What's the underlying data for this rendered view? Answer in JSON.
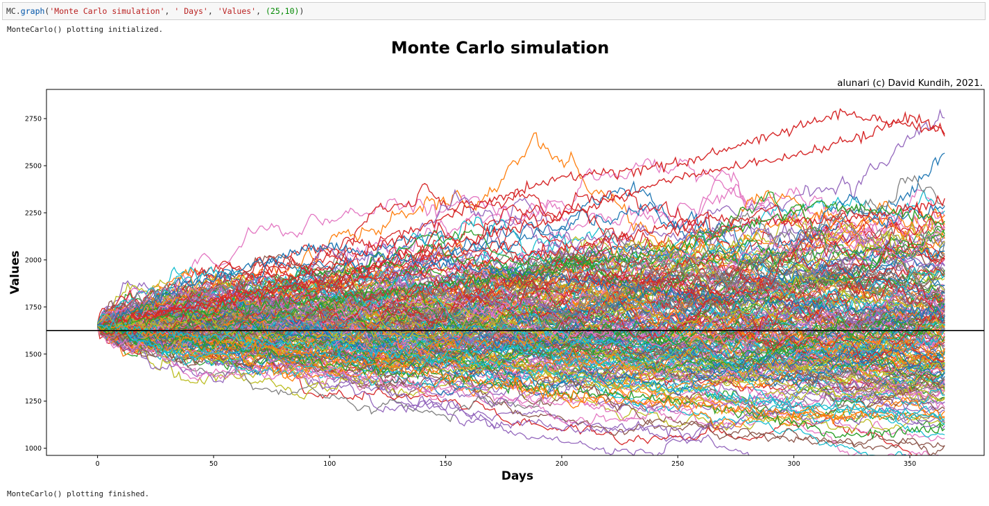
{
  "code_cell": {
    "object": "MC",
    "method": "graph",
    "args": [
      {
        "kind": "str",
        "text": "'Monte Carlo simulation'"
      },
      {
        "kind": "str",
        "text": "' Days'"
      },
      {
        "kind": "str",
        "text": "'Values'"
      },
      {
        "kind": "num",
        "text": "(25,10)"
      }
    ]
  },
  "output": {
    "init_message": "MonteCarlo() plotting initialized.",
    "finish_message": "MonteCarlo() plotting finished."
  },
  "chart_data": {
    "type": "line",
    "title": "Monte Carlo simulation",
    "credit": "alunari (c) David Kundih, 2021.",
    "xlabel": "Days",
    "ylabel": "Values",
    "xlim": [
      -22,
      382
    ],
    "ylim": [
      962,
      2905
    ],
    "xticks": [
      0,
      50,
      100,
      150,
      200,
      250,
      300,
      350
    ],
    "yticks": [
      1000,
      1250,
      1500,
      1750,
      2000,
      2250,
      2500,
      2750
    ],
    "n_days": 365,
    "start_value": 1650,
    "reference_line": 1625,
    "reference_color": "#000000",
    "series_colors": [
      "#1f77b4",
      "#ff7f0e",
      "#2ca02c",
      "#d62728",
      "#9467bd",
      "#8c564b",
      "#e377c2",
      "#7f7f7f",
      "#bcbd22",
      "#17becf"
    ],
    "highlight_series": [
      {
        "color": "#d62728",
        "values": [
          [
            0,
            1650
          ],
          [
            50,
            1780
          ],
          [
            100,
            1960
          ],
          [
            150,
            2230
          ],
          [
            200,
            2440
          ],
          [
            250,
            2510
          ],
          [
            300,
            2700
          ],
          [
            320,
            2780
          ],
          [
            340,
            2740
          ],
          [
            365,
            2680
          ]
        ]
      },
      {
        "color": "#d62728",
        "values": [
          [
            0,
            1650
          ],
          [
            50,
            1760
          ],
          [
            100,
            1900
          ],
          [
            150,
            2080
          ],
          [
            200,
            2230
          ],
          [
            250,
            2440
          ],
          [
            300,
            2550
          ],
          [
            330,
            2650
          ],
          [
            350,
            2770
          ],
          [
            365,
            2690
          ]
        ]
      },
      {
        "color": "#2ca02c",
        "values": [
          [
            0,
            1650
          ],
          [
            50,
            1560
          ],
          [
            100,
            1450
          ],
          [
            150,
            1380
          ],
          [
            200,
            1300
          ],
          [
            250,
            1250
          ],
          [
            300,
            1140
          ],
          [
            320,
            1060
          ],
          [
            345,
            1090
          ],
          [
            365,
            1100
          ]
        ]
      },
      {
        "color": "#1f77b4",
        "values": [
          [
            0,
            1650
          ],
          [
            40,
            1870
          ],
          [
            80,
            2020
          ],
          [
            100,
            2080
          ],
          [
            130,
            2000
          ],
          [
            200,
            1900
          ],
          [
            260,
            1800
          ],
          [
            320,
            1750
          ],
          [
            365,
            1720
          ]
        ]
      },
      {
        "color": "#d62728",
        "values": [
          [
            0,
            1650
          ],
          [
            80,
            1850
          ],
          [
            150,
            1950
          ],
          [
            200,
            2050
          ],
          [
            260,
            2220
          ],
          [
            300,
            2200
          ],
          [
            340,
            2250
          ],
          [
            365,
            2310
          ]
        ]
      },
      {
        "color": "#2ca02c",
        "values": [
          [
            0,
            1650
          ],
          [
            100,
            1800
          ],
          [
            200,
            1950
          ],
          [
            260,
            2100
          ],
          [
            310,
            2300
          ],
          [
            340,
            2260
          ],
          [
            365,
            2190
          ]
        ]
      },
      {
        "color": "#ff7f0e",
        "values": [
          [
            0,
            1650
          ],
          [
            80,
            1520
          ],
          [
            150,
            1380
          ],
          [
            200,
            1280
          ],
          [
            260,
            1220
          ],
          [
            320,
            1170
          ],
          [
            365,
            1180
          ]
        ]
      },
      {
        "color": "#17becf",
        "values": [
          [
            0,
            1650
          ],
          [
            100,
            1540
          ],
          [
            200,
            1400
          ],
          [
            280,
            1260
          ],
          [
            330,
            1200
          ],
          [
            365,
            1160
          ]
        ]
      }
    ]
  }
}
